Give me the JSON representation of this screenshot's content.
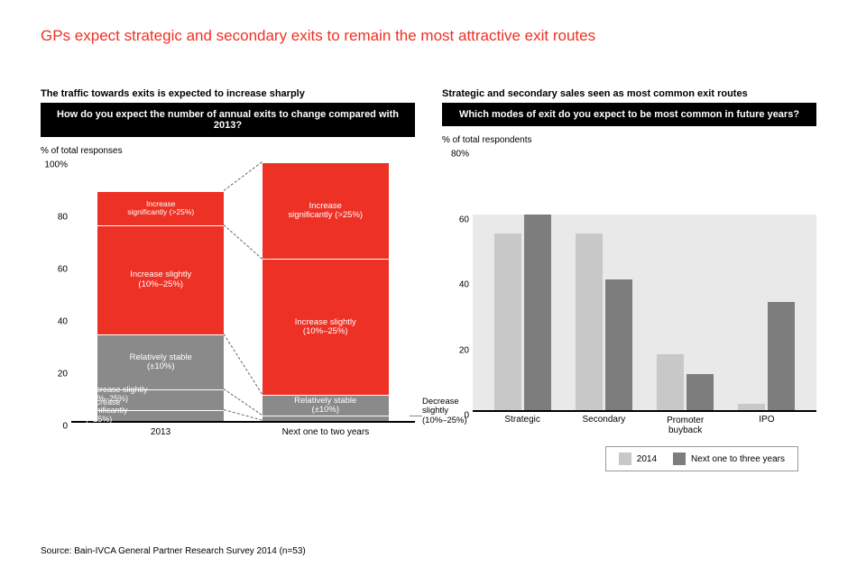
{
  "title": "GPs expect strategic and secondary exits to remain the most attractive exit routes",
  "title_color": "#ed3124",
  "title_fontsize": 17,
  "source": "Source: Bain-IVCA General Partner Research Survey 2014 (n=53)",
  "left_chart": {
    "subtitle": "The traffic towards exits is expected to increase sharply",
    "question": "How do you expect the number of annual exits to change compared with 2013?",
    "axis_label": "% of total responses",
    "ymax": 100,
    "ytick_step": 20,
    "yticks": [
      "0",
      "20",
      "40",
      "60",
      "80",
      "100%"
    ],
    "categories": [
      "2013",
      "Next one to two years"
    ],
    "segments": [
      "Decrease significantly (>25%)",
      "Decrease slightly (10%–25%)",
      "Relatively stable (±10%)",
      "Increase slightly (10%–25%)",
      "Increase significantly (>25%)"
    ],
    "colors": {
      "Decrease significantly (>25%)": "#8a8a8a",
      "Decrease slightly (10%–25%)": "#8a8a8a",
      "Relatively stable (±10%)": "#8a8a8a",
      "Increase slightly (10%–25%)": "#ed3124",
      "Increase significantly (>25%)": "#ed3124"
    },
    "data": {
      "2013": {
        "Decrease significantly (>25%)": 4,
        "Decrease slightly (10%–25%)": 8,
        "Relatively stable (±10%)": 21,
        "Increase slightly (10%–25%)": 42,
        "Increase significantly (>25%)": 13
      },
      "Next one to two years": {
        "Decrease significantly (>25%)": 0,
        "Decrease slightly (10%–25%)": 2,
        "Relatively stable (±10%)": 8,
        "Increase slightly (10%–25%)": 52,
        "Increase significantly (>25%)": 37
      }
    },
    "seg_label_text": {
      "Increase significantly (>25%)": "Increase\nsignificantly (>25%)",
      "Increase slightly (10%–25%)": "Increase slightly\n(10%–25%)",
      "Relatively stable (±10%)": "Relatively stable\n(±10%)",
      "Decrease slightly (10%–25%)": "Decrease slightly\n(10%–25%)",
      "Decrease significantly (>25%)": "Decrease\nsignificantly\n(>25%)"
    },
    "right_callout": "Decrease\nslightly\n(10%–25%)"
  },
  "right_chart": {
    "subtitle": "Strategic and secondary sales seen as most common exit routes",
    "question": "Which modes of exit do you expect to be most common in future years?",
    "axis_label": "% of total respondents",
    "ymax": 80,
    "ytick_step": 20,
    "yticks": [
      "0",
      "20",
      "40",
      "60",
      "80%"
    ],
    "categories": [
      "Strategic",
      "Secondary",
      "Promoter buyback",
      "IPO"
    ],
    "series": [
      "2014",
      "Next one to three years"
    ],
    "series_colors": {
      "2014": "#c8c8c8",
      "Next one to three years": "#7d7d7d"
    },
    "data": {
      "Strategic": {
        "2014": 54,
        "Next one to three years": 60
      },
      "Secondary": {
        "2014": 54,
        "Next one to three years": 40
      },
      "Promoter buyback": {
        "2014": 17,
        "Next one to three years": 11
      },
      "IPO": {
        "2014": 2,
        "Next one to three years": 33
      }
    },
    "background_band_color": "#e9e9e9",
    "background_band_top": 60
  },
  "legend": {
    "items": [
      {
        "label": "2014",
        "color": "#c8c8c8"
      },
      {
        "label": "Next one to three years",
        "color": "#7d7d7d"
      }
    ]
  }
}
